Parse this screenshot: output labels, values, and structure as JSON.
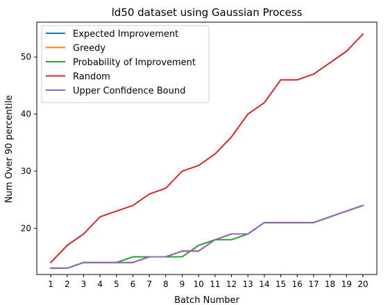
{
  "chart_data": {
    "type": "line",
    "title": "ld50 dataset using Gaussian Process",
    "xlabel": "Batch Number",
    "ylabel": "Num Over 90 percentile",
    "x": [
      1,
      2,
      3,
      4,
      5,
      6,
      7,
      8,
      9,
      10,
      11,
      12,
      13,
      14,
      15,
      16,
      17,
      18,
      19,
      20
    ],
    "xlim": [
      0.15,
      20.85
    ],
    "ylim": [
      11.9,
      56.1
    ],
    "yticks": [
      20,
      30,
      40,
      50
    ],
    "grid": false,
    "legend_position": "top-left",
    "series": [
      {
        "name": "Expected Improvement",
        "color": "#1f77b4",
        "values": [
          13,
          13,
          14,
          14,
          14,
          14,
          15,
          15,
          16,
          16,
          18,
          19,
          19,
          21,
          21,
          21,
          21,
          22,
          23,
          24
        ]
      },
      {
        "name": "Greedy",
        "color": "#ff7f0e",
        "values": [
          13,
          13,
          14,
          14,
          14,
          14,
          15,
          15,
          16,
          16,
          18,
          19,
          19,
          21,
          21,
          21,
          21,
          22,
          23,
          24
        ]
      },
      {
        "name": "Probability of Improvement",
        "color": "#2ca02c",
        "values": [
          13,
          13,
          14,
          14,
          14,
          15,
          15,
          15,
          15,
          17,
          18,
          18,
          19,
          21,
          21,
          21,
          21,
          22,
          23,
          24
        ]
      },
      {
        "name": "Random",
        "color": "#d62728",
        "values": [
          14,
          17,
          19,
          22,
          23,
          24,
          26,
          27,
          30,
          31,
          33,
          36,
          40,
          42,
          46,
          46,
          47,
          49,
          51,
          54
        ]
      },
      {
        "name": "Upper Confidence Bound",
        "color": "#9467bd",
        "values": [
          13,
          13,
          14,
          14,
          14,
          14,
          15,
          15,
          16,
          16,
          18,
          19,
          19,
          21,
          21,
          21,
          21,
          22,
          23,
          24
        ]
      }
    ]
  }
}
